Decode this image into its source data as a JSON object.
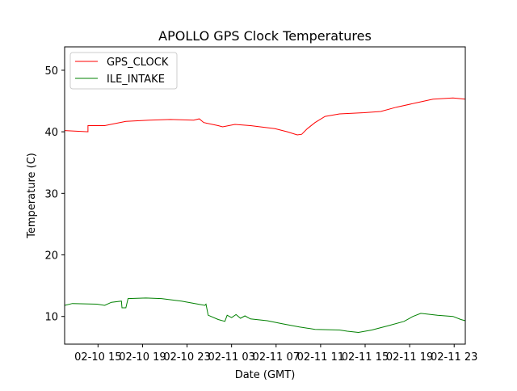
{
  "chart_data": {
    "type": "line",
    "title": "APOLLO GPS Clock Temperatures",
    "xlabel": "Date (GMT)",
    "ylabel": "Temperature (C)",
    "x_units": "hours since 02-10 00:00 GMT",
    "xlim": [
      12,
      48
    ],
    "ylim": [
      5.5,
      53.8
    ],
    "grid": false,
    "legend_position": "top-left",
    "xticks": [
      {
        "value": 15,
        "label": "02-10 15"
      },
      {
        "value": 19,
        "label": "02-10 19"
      },
      {
        "value": 23,
        "label": "02-10 23"
      },
      {
        "value": 27,
        "label": "02-11 03"
      },
      {
        "value": 31,
        "label": "02-11 07"
      },
      {
        "value": 35,
        "label": "02-11 11"
      },
      {
        "value": 39,
        "label": "02-11 15"
      },
      {
        "value": 43,
        "label": "02-11 19"
      },
      {
        "value": 47,
        "label": "02-11 23"
      }
    ],
    "yticks": [
      {
        "value": 10,
        "label": "10"
      },
      {
        "value": 20,
        "label": "20"
      },
      {
        "value": 30,
        "label": "30"
      },
      {
        "value": 40,
        "label": "40"
      },
      {
        "value": 50,
        "label": "50"
      }
    ],
    "series": [
      {
        "name": "GPS_CLOCK",
        "color": "#ff0000",
        "x": [
          12,
          14.1,
          14.1,
          15.6,
          17.5,
          19.6,
          21.5,
          23.6,
          24.1,
          24.5,
          25.8,
          26.2,
          27.3,
          28.7,
          30.9,
          32.0,
          32.9,
          33.3,
          33.8,
          34.5,
          35.4,
          36.7,
          38.9,
          40.4,
          41.8,
          43.6,
          45.1,
          46.9,
          48
        ],
        "y": [
          40.2,
          40.0,
          41.0,
          41.0,
          41.7,
          41.9,
          42.0,
          41.9,
          42.1,
          41.5,
          41.0,
          40.8,
          41.2,
          41.0,
          40.5,
          40.0,
          39.5,
          39.6,
          40.5,
          41.5,
          42.5,
          42.9,
          43.1,
          43.3,
          44.0,
          44.7,
          45.3,
          45.5,
          45.3
        ]
      },
      {
        "name": "ILE_INTAKE",
        "color": "#008000",
        "x": [
          12,
          12.7,
          14.9,
          15.6,
          16.2,
          17.1,
          17.15,
          17.5,
          17.7,
          19.3,
          20.7,
          22.5,
          24.0,
          24.6,
          24.7,
          24.9,
          25.8,
          26.4,
          26.6,
          27.0,
          27.4,
          27.8,
          28.2,
          28.7,
          30.2,
          31.6,
          33.1,
          34.5,
          36.7,
          37.4,
          38.4,
          39.6,
          41.1,
          42.5,
          43.3,
          44.0,
          45.5,
          46.9,
          47.6,
          48
        ],
        "y": [
          11.8,
          12.1,
          12.0,
          11.8,
          12.3,
          12.5,
          11.4,
          11.4,
          12.9,
          13.0,
          12.9,
          12.5,
          12.0,
          11.8,
          12.0,
          10.2,
          9.5,
          9.2,
          10.2,
          9.8,
          10.3,
          9.7,
          10.1,
          9.6,
          9.3,
          8.8,
          8.3,
          7.9,
          7.8,
          7.6,
          7.4,
          7.8,
          8.5,
          9.2,
          10.0,
          10.5,
          10.2,
          10.0,
          9.5,
          9.3
        ]
      }
    ]
  }
}
